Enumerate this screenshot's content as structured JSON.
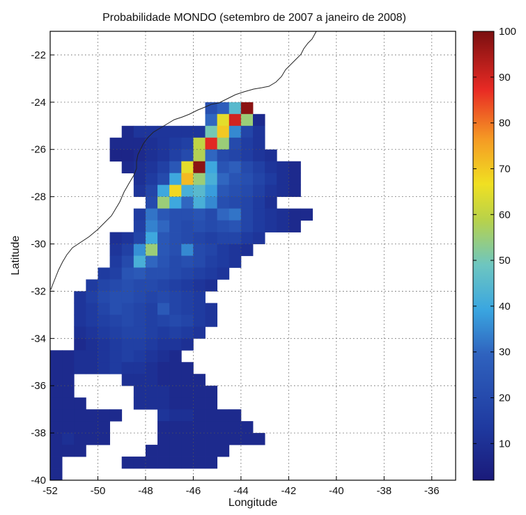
{
  "chart_data": {
    "type": "heatmap",
    "title": "Probabilidade MONDO (setembro de 2007 a janeiro de 2008)",
    "xlabel": "Longitude",
    "ylabel": "Latitude",
    "xlim": [
      -52,
      -35
    ],
    "ylim": [
      -40,
      -21
    ],
    "xticks": [
      -52,
      -50,
      -48,
      -46,
      -44,
      -42,
      -40,
      -38,
      -36
    ],
    "yticks": [
      -22,
      -24,
      -26,
      -28,
      -30,
      -32,
      -34,
      -36,
      -38,
      -40
    ],
    "grid": true,
    "cell_size_deg": 0.5,
    "colorbar": {
      "range": [
        2,
        100
      ],
      "ticks": [
        10,
        20,
        30,
        40,
        50,
        60,
        70,
        80,
        90,
        100
      ],
      "colormap": "jet"
    },
    "rows": [
      {
        "lat": -24,
        "lon0": -45.5,
        "values": [
          22,
          28,
          45,
          98
        ]
      },
      {
        "lat": -24.5,
        "lon0": -45.5,
        "values": [
          30,
          65,
          90,
          55,
          8
        ]
      },
      {
        "lat": -25,
        "lon0": -49,
        "values": [
          8,
          12,
          12,
          12,
          12,
          12,
          12,
          50,
          70,
          35,
          18,
          12
        ]
      },
      {
        "lat": -25.5,
        "lon0": -49.5,
        "values": [
          8,
          8,
          8,
          10,
          12,
          14,
          16,
          60,
          88,
          55,
          20,
          15,
          12
        ]
      },
      {
        "lat": -26,
        "lon0": -49.5,
        "values": [
          6,
          6,
          8,
          10,
          12,
          16,
          20,
          58,
          30,
          20,
          18,
          15,
          12,
          10
        ]
      },
      {
        "lat": -26.5,
        "lon0": -49,
        "values": [
          8,
          10,
          12,
          16,
          25,
          65,
          98,
          40,
          24,
          28,
          20,
          16,
          12,
          10,
          8
        ]
      },
      {
        "lat": -27,
        "lon0": -48.5,
        "values": [
          10,
          14,
          20,
          40,
          72,
          55,
          42,
          30,
          24,
          22,
          18,
          14,
          10,
          8
        ]
      },
      {
        "lat": -27.5,
        "lon0": -48.5,
        "values": [
          12,
          18,
          40,
          68,
          42,
          45,
          38,
          25,
          22,
          20,
          16,
          12,
          10,
          8
        ]
      },
      {
        "lat": -28,
        "lon0": -48,
        "values": [
          20,
          55,
          40,
          30,
          42,
          35,
          22,
          20,
          18,
          14,
          10
        ]
      },
      {
        "lat": -28.5,
        "lon0": -48.5,
        "values": [
          14,
          32,
          25,
          22,
          22,
          24,
          20,
          30,
          32,
          18,
          14,
          12,
          10,
          8,
          8
        ]
      },
      {
        "lat": -29,
        "lon0": -48.5,
        "values": [
          16,
          34,
          30,
          22,
          20,
          22,
          20,
          22,
          24,
          18,
          14,
          12,
          10,
          8
        ]
      },
      {
        "lat": -29.5,
        "lon0": -49.5,
        "values": [
          10,
          12,
          18,
          40,
          25,
          22,
          20,
          18,
          16,
          18,
          18,
          14,
          12
        ]
      },
      {
        "lat": -30,
        "lon0": -49.5,
        "values": [
          12,
          16,
          36,
          55,
          25,
          22,
          35,
          20,
          18,
          14,
          12,
          10
        ]
      },
      {
        "lat": -30.5,
        "lon0": -49.5,
        "values": [
          14,
          20,
          42,
          30,
          24,
          20,
          22,
          20,
          16,
          14,
          12
        ]
      },
      {
        "lat": -31,
        "lon0": -50,
        "values": [
          14,
          16,
          24,
          26,
          22,
          22,
          20,
          18,
          16,
          14,
          12
        ]
      },
      {
        "lat": -31.5,
        "lon0": -50.5,
        "values": [
          14,
          18,
          20,
          22,
          20,
          20,
          18,
          16,
          14,
          12,
          10
        ]
      },
      {
        "lat": -32,
        "lon0": -51,
        "values": [
          12,
          16,
          20,
          22,
          22,
          20,
          18,
          20,
          18,
          16,
          14
        ]
      },
      {
        "lat": -32.5,
        "lon0": -51,
        "values": [
          12,
          14,
          18,
          22,
          20,
          18,
          16,
          26,
          18,
          16,
          14,
          12
        ]
      },
      {
        "lat": -33,
        "lon0": -51,
        "values": [
          12,
          14,
          16,
          18,
          20,
          18,
          16,
          18,
          20,
          18,
          14,
          12
        ]
      },
      {
        "lat": -33.5,
        "lon0": -51,
        "values": [
          10,
          12,
          14,
          16,
          18,
          18,
          16,
          14,
          16,
          14,
          12
        ]
      },
      {
        "lat": -34,
        "lon0": -51,
        "values": [
          8,
          10,
          12,
          14,
          16,
          16,
          14,
          12,
          12,
          10
        ]
      },
      {
        "lat": -34.5,
        "lon0": -52,
        "values": [
          8,
          8,
          10,
          10,
          12,
          14,
          16,
          14,
          12,
          10,
          8
        ]
      },
      {
        "lat": -35,
        "lon0": -52,
        "values": [
          8,
          8,
          10,
          10,
          12,
          14,
          12,
          12,
          10,
          8,
          8,
          8
        ]
      },
      {
        "lat": -35.5,
        "lon0": -52,
        "values": [
          8,
          8,
          null,
          null,
          null,
          null,
          10,
          10,
          10,
          8,
          8,
          8,
          8
        ]
      },
      {
        "lat": -36,
        "lon0": -52,
        "values": [
          8,
          8,
          null,
          null,
          null,
          null,
          null,
          10,
          10,
          10,
          8,
          8,
          8,
          8
        ]
      },
      {
        "lat": -36.5,
        "lon0": -52,
        "values": [
          8,
          8,
          8,
          null,
          null,
          null,
          null,
          10,
          10,
          10,
          8,
          8,
          8,
          8
        ]
      },
      {
        "lat": -37,
        "lon0": -52,
        "values": [
          8,
          8,
          8,
          8,
          8,
          8,
          null,
          null,
          null,
          12,
          10,
          10,
          8,
          8,
          8,
          8
        ]
      },
      {
        "lat": -37.5,
        "lon0": -52,
        "values": [
          8,
          8,
          8,
          8,
          8,
          null,
          null,
          null,
          null,
          8,
          8,
          8,
          8,
          8,
          8,
          8,
          8
        ]
      },
      {
        "lat": -38,
        "lon0": -52,
        "values": [
          8,
          10,
          8,
          8,
          8,
          null,
          null,
          null,
          null,
          8,
          8,
          8,
          8,
          8,
          8,
          8,
          8,
          8
        ]
      },
      {
        "lat": -38.5,
        "lon0": -52,
        "values": [
          8,
          8,
          8,
          null,
          null,
          null,
          null,
          null,
          8,
          8,
          8,
          8,
          8,
          8,
          8
        ]
      },
      {
        "lat": -39,
        "lon0": -52,
        "values": [
          8,
          null,
          null,
          null,
          null,
          null,
          8,
          8,
          8,
          8,
          8,
          8,
          8,
          8
        ]
      },
      {
        "lat": -39.5,
        "lon0": -52,
        "values": [
          8
        ]
      }
    ]
  }
}
